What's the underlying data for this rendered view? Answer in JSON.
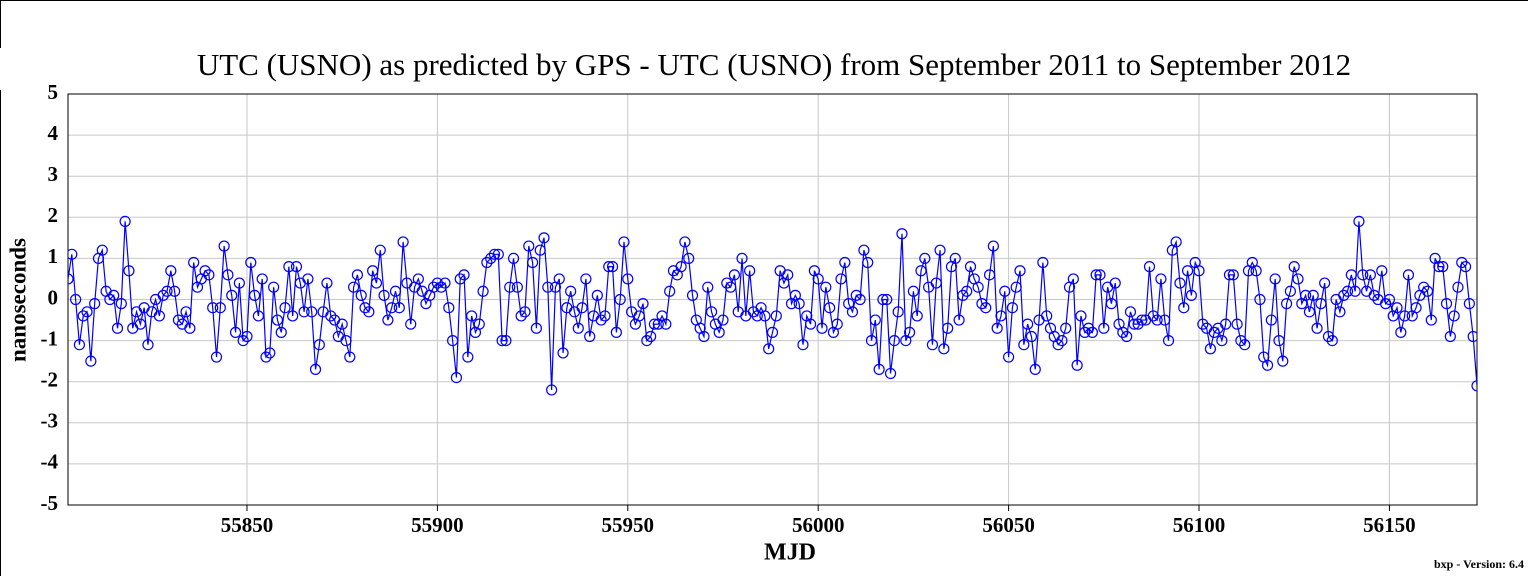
{
  "chart_data": {
    "type": "line",
    "title": "UTC (USNO) as predicted by GPS - UTC (USNO) from September 2011 to September 2012",
    "xlabel": "MJD",
    "ylabel": "nanoseconds",
    "footnote": "bxp - Version: 6.4",
    "xlim": [
      55803,
      56173
    ],
    "ylim": [
      -5,
      5
    ],
    "xticks": [
      55850,
      55900,
      55950,
      56000,
      56050,
      56100,
      56150
    ],
    "yticks": [
      -5,
      -4,
      -3,
      -2,
      -1,
      0,
      1,
      2,
      3,
      4,
      5
    ],
    "grid": true,
    "x": [
      55803,
      55804,
      55805,
      55806,
      55807,
      55808,
      55809,
      55810,
      55811,
      55812,
      55813,
      55814,
      55815,
      55816,
      55817,
      55818,
      55819,
      55820,
      55821,
      55822,
      55823,
      55824,
      55825,
      55826,
      55827,
      55828,
      55829,
      55830,
      55831,
      55832,
      55833,
      55834,
      55835,
      55836,
      55837,
      55838,
      55839,
      55840,
      55841,
      55842,
      55843,
      55844,
      55845,
      55846,
      55847,
      55848,
      55849,
      55850,
      55851,
      55852,
      55853,
      55854,
      55855,
      55856,
      55857,
      55858,
      55859,
      55860,
      55861,
      55862,
      55863,
      55864,
      55865,
      55866,
      55867,
      55868,
      55869,
      55870,
      55871,
      55872,
      55873,
      55874,
      55875,
      55876,
      55877,
      55878,
      55879,
      55880,
      55881,
      55882,
      55883,
      55884,
      55885,
      55886,
      55887,
      55888,
      55889,
      55890,
      55891,
      55892,
      55893,
      55894,
      55895,
      55896,
      55897,
      55898,
      55899,
      55900,
      55901,
      55902,
      55903,
      55904,
      55905,
      55906,
      55907,
      55908,
      55909,
      55910,
      55911,
      55912,
      55913,
      55914,
      55915,
      55916,
      55917,
      55918,
      55919,
      55920,
      55921,
      55922,
      55923,
      55924,
      55925,
      55926,
      55927,
      55928,
      55929,
      55930,
      55931,
      55932,
      55933,
      55934,
      55935,
      55936,
      55937,
      55938,
      55939,
      55940,
      55941,
      55942,
      55943,
      55944,
      55945,
      55946,
      55947,
      55948,
      55949,
      55950,
      55951,
      55952,
      55953,
      55954,
      55955,
      55956,
      55957,
      55958,
      55959,
      55960,
      55961,
      55962,
      55963,
      55964,
      55965,
      55966,
      55967,
      55968,
      55969,
      55970,
      55971,
      55972,
      55973,
      55974,
      55975,
      55976,
      55977,
      55978,
      55979,
      55980,
      55981,
      55982,
      55983,
      55984,
      55985,
      55986,
      55987,
      55988,
      55989,
      55990,
      55991,
      55992,
      55993,
      55994,
      55995,
      55996,
      55997,
      55998,
      55999,
      56000,
      56001,
      56002,
      56003,
      56004,
      56005,
      56006,
      56007,
      56008,
      56009,
      56010,
      56011,
      56012,
      56013,
      56014,
      56015,
      56016,
      56017,
      56018,
      56019,
      56020,
      56021,
      56022,
      56023,
      56024,
      56025,
      56026,
      56027,
      56028,
      56029,
      56030,
      56031,
      56032,
      56033,
      56034,
      56035,
      56036,
      56037,
      56038,
      56039,
      56040,
      56041,
      56042,
      56043,
      56044,
      56045,
      56046,
      56047,
      56048,
      56049,
      56050,
      56051,
      56052,
      56053,
      56054,
      56055,
      56056,
      56057,
      56058,
      56059,
      56060,
      56061,
      56062,
      56063,
      56064,
      56065,
      56066,
      56067,
      56068,
      56069,
      56070,
      56071,
      56072,
      56073,
      56074,
      56075,
      56076,
      56077,
      56078,
      56079,
      56080,
      56081,
      56082,
      56083,
      56084,
      56085,
      56086,
      56087,
      56088,
      56089,
      56090,
      56091,
      56092,
      56093,
      56094,
      56095,
      56096,
      56097,
      56098,
      56099,
      56100,
      56101,
      56102,
      56103,
      56104,
      56105,
      56106,
      56107,
      56108,
      56109,
      56110,
      56111,
      56112,
      56113,
      56114,
      56115,
      56116,
      56117,
      56118,
      56119,
      56120,
      56121,
      56122,
      56123,
      56124,
      56125,
      56126,
      56127,
      56128,
      56129,
      56130,
      56131,
      56132,
      56133,
      56134,
      56135,
      56136,
      56137,
      56138,
      56139,
      56140,
      56141,
      56142,
      56143,
      56144,
      56145,
      56146,
      56147,
      56148,
      56149,
      56150,
      56151,
      56152,
      56153,
      56154,
      56155,
      56156,
      56157,
      56158,
      56159,
      56160,
      56161,
      56162,
      56163,
      56164,
      56165,
      56166,
      56167,
      56168,
      56169,
      56170,
      56171,
      56172,
      56173
    ],
    "series": [
      {
        "color": "#0000ff",
        "values": [
          0.5,
          1.1,
          0,
          -1.1,
          -0.4,
          -0.3,
          -1.5,
          -0.1,
          1.0,
          1.2,
          0.2,
          0,
          0.1,
          -0.7,
          -0.1,
          1.9,
          0.7,
          -0.7,
          -0.3,
          -0.6,
          -0.2,
          -1.1,
          -0.3,
          0,
          -0.4,
          0.1,
          0.2,
          0.7,
          0.2,
          -0.5,
          -0.6,
          -0.3,
          -0.7,
          0.9,
          0.3,
          0.5,
          0.7,
          0.6,
          -0.2,
          -1.4,
          -0.2,
          1.3,
          0.6,
          0.1,
          -0.8,
          0.4,
          -1.0,
          -0.9,
          0.9,
          0.1,
          -0.4,
          0.5,
          -1.4,
          -1.3,
          0.3,
          -0.5,
          -0.8,
          -0.2,
          0.8,
          -0.4,
          0.8,
          0.4,
          -0.3,
          0.5,
          -0.3,
          -1.7,
          -1.1,
          -0.3,
          0.4,
          -0.4,
          -0.5,
          -0.9,
          -0.6,
          -1.0,
          -1.4,
          0.3,
          0.6,
          0.1,
          -0.2,
          -0.3,
          0.7,
          0.4,
          1.2,
          0.1,
          -0.5,
          -0.2,
          0.2,
          -0.2,
          1.4,
          0.4,
          -0.6,
          0.3,
          0.5,
          0.2,
          -0.1,
          0.1,
          0.3,
          0.4,
          0.3,
          0.4,
          -0.2,
          -1.0,
          -1.9,
          0.5,
          0.6,
          -1.4,
          -0.4,
          -0.8,
          -0.6,
          0.2,
          0.9,
          1.0,
          1.1,
          1.1,
          -1.0,
          -1.0,
          0.3,
          1.0,
          0.3,
          -0.4,
          -0.3,
          1.3,
          0.9,
          -0.7,
          1.2,
          1.5,
          0.3,
          -2.2,
          0.3,
          0.5,
          -1.3,
          -0.2,
          0.2,
          -0.3,
          -0.7,
          -0.2,
          0.5,
          -0.9,
          -0.4,
          0.1,
          -0.5,
          -0.4,
          0.8,
          0.8,
          -0.8,
          0,
          1.4,
          0.5,
          -0.3,
          -0.6,
          -0.4,
          -0.1,
          -1.0,
          -0.9,
          -0.6,
          -0.6,
          -0.4,
          -0.6,
          0.2,
          0.7,
          0.6,
          0.8,
          1.4,
          1.0,
          0.1,
          -0.5,
          -0.7,
          -0.9,
          0.3,
          -0.3,
          -0.6,
          -0.8,
          -0.5,
          0.4,
          0.3,
          0.6,
          -0.3,
          1.0,
          -0.4,
          0.7,
          -0.3,
          -0.4,
          -0.2,
          -0.4,
          -1.2,
          -0.8,
          -0.4,
          0.7,
          0.4,
          0.6,
          -0.1,
          0.1,
          -0.1,
          -1.1,
          -0.4,
          -0.6,
          0.7,
          0.5,
          -0.7,
          0.3,
          -0.2,
          -0.8,
          -0.6,
          0.5,
          0.9,
          -0.1,
          -0.3,
          0.1,
          0,
          1.2,
          0.9,
          -1.0,
          -0.5,
          -1.7,
          0,
          0,
          -1.8,
          -1.0,
          -0.3,
          1.6,
          -1.0,
          -0.8,
          0.2,
          -0.4,
          0.7,
          1.0,
          0.3,
          -1.1,
          0.4,
          1.2,
          -1.2,
          -0.7,
          0.8,
          1.0,
          -0.5,
          0.1,
          0.2,
          0.8,
          0.5,
          0.3,
          -0.1,
          -0.2,
          0.6,
          1.3,
          -0.7,
          -0.4,
          0.2,
          -1.4,
          -0.2,
          0.3,
          0.7,
          -1.1,
          -0.6,
          -0.9,
          -1.7,
          -0.5,
          0.9,
          -0.4,
          -0.7,
          -0.9,
          -1.1,
          -1.0,
          -0.7,
          0.3,
          0.5,
          -1.6,
          -0.4,
          -0.8,
          -0.7,
          -0.8,
          0.6,
          0.6,
          -0.7,
          0.3,
          -0.1,
          0.4,
          -0.6,
          -0.8,
          -0.9,
          -0.3,
          -0.6,
          -0.6,
          -0.5,
          -0.5,
          0.8,
          -0.4,
          -0.5,
          0.5,
          -0.5,
          -1.0,
          1.2,
          1.4,
          0.4,
          -0.2,
          0.7,
          0.1,
          0.9,
          0.7,
          -0.6,
          -0.7,
          -1.2,
          -0.8,
          -0.7,
          -1.0,
          -0.6,
          0.6,
          0.6,
          -0.6,
          -1.0,
          -1.1,
          0.7,
          0.9,
          0.7,
          0,
          -1.4,
          -1.6,
          -0.5,
          0.5,
          -1.0,
          -1.5,
          -0.1,
          0.2,
          0.8,
          0.5,
          -0.1,
          0.1,
          -0.3,
          0.1,
          -0.7,
          -0.1,
          0.4,
          -0.9,
          -1.0,
          0,
          -0.3,
          0.1,
          0.2,
          0.6,
          0.2,
          1.9,
          0.6,
          0.2,
          0.6,
          0.1,
          0,
          0.7,
          -0.1,
          0,
          -0.4,
          -0.2,
          -0.8,
          -0.4,
          0.6,
          -0.4,
          -0.2,
          0.1,
          0.3,
          0.2,
          -0.5,
          1.0,
          0.8,
          0.8,
          -0.1,
          -0.9,
          -0.4,
          0.3,
          0.9,
          0.8,
          -0.1,
          -0.9,
          -2.1
        ]
      }
    ]
  }
}
